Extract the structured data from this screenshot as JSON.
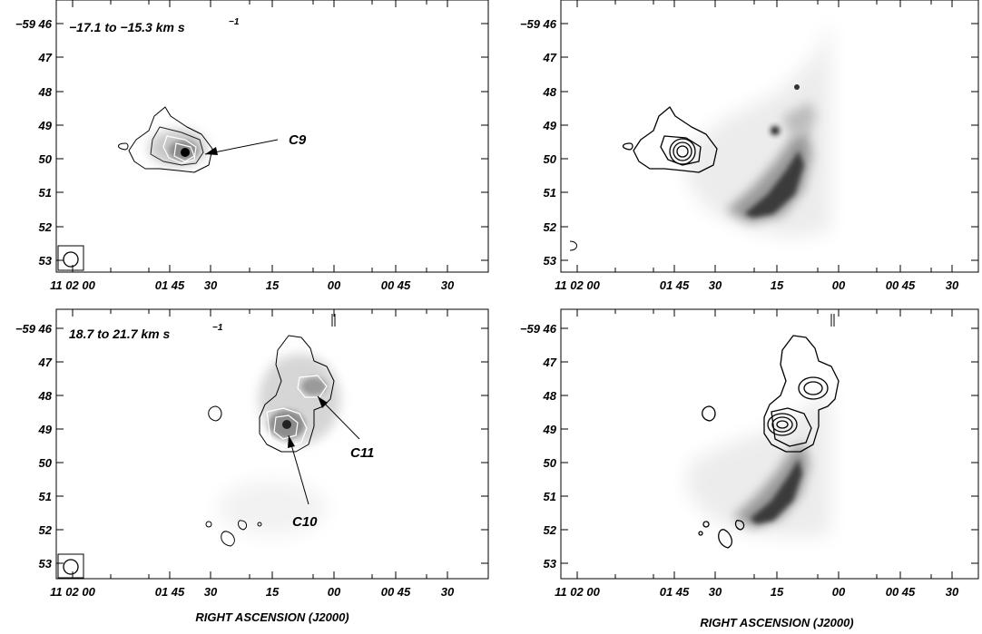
{
  "figure": {
    "xlabel": "RIGHT ASCENSION (J2000)",
    "ra_ticks": [
      "11 02 00",
      "01 45",
      "30",
      "15",
      "00",
      "00 45",
      "30"
    ],
    "dec_ticks": [
      "−59 46",
      "47",
      "48",
      "49",
      "50",
      "51",
      "52",
      "53"
    ]
  },
  "panels": [
    {
      "id": "top-left",
      "label_text": "−17.1   to   −15.3   km s",
      "label_exp": "−1",
      "annotations": [
        "C9"
      ]
    },
    {
      "id": "top-right",
      "label_text": "",
      "label_exp": "",
      "annotations": []
    },
    {
      "id": "bottom-left",
      "label_text": "18.7   to   21.7   km s",
      "label_exp": "−1",
      "annotations": [
        "C10",
        "C11"
      ]
    },
    {
      "id": "bottom-right",
      "label_text": "",
      "label_exp": "",
      "annotations": []
    }
  ],
  "chart_data": [
    {
      "type": "heatmap",
      "panel": "top-left",
      "velocity_range": [
        "−17.1",
        "−15.3"
      ],
      "unit": "km s−1",
      "sources": [
        {
          "name": "C9",
          "ra": "11 01 38",
          "dec": "−59 49.8"
        }
      ],
      "xlabel": "",
      "ylabel": ""
    },
    {
      "type": "heatmap",
      "panel": "top-right",
      "overlay": "contours on greyscale nebula image",
      "xlabel": "",
      "ylabel": ""
    },
    {
      "type": "heatmap",
      "panel": "bottom-left",
      "velocity_range": [
        "18.7",
        "21.7"
      ],
      "unit": "km s−1",
      "sources": [
        {
          "name": "C10",
          "ra": "11 01 12",
          "dec": "−59 48.9"
        },
        {
          "name": "C11",
          "ra": "11 01 04",
          "dec": "−59 47.8"
        }
      ],
      "xlabel": "RIGHT ASCENSION (J2000)",
      "ylabel": ""
    },
    {
      "type": "heatmap",
      "panel": "bottom-right",
      "overlay": "contours on greyscale nebula image",
      "xlabel": "RIGHT ASCENSION (J2000)",
      "ylabel": ""
    }
  ]
}
